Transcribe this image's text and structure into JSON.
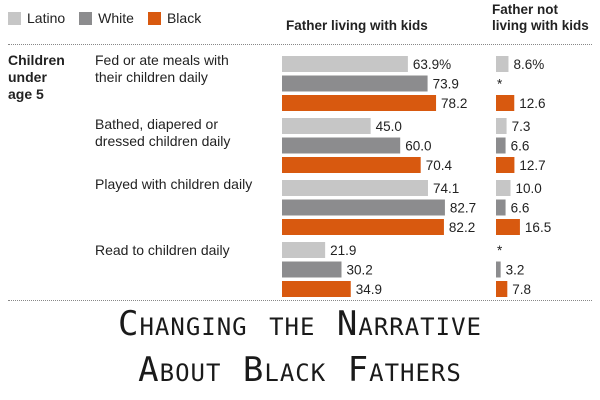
{
  "legend": [
    {
      "label": "Latino",
      "color": "#c6c6c6"
    },
    {
      "label": "White",
      "color": "#8c8c8e"
    },
    {
      "label": "Black",
      "color": "#d8590f"
    }
  ],
  "row_title_lines": [
    "Children",
    "under",
    "age 5"
  ],
  "footer": {
    "line1": "Changing the Narrative",
    "line2": "About Black Fathers"
  },
  "chart_data": {
    "type": "bar",
    "orientation": "horizontal",
    "panels": [
      {
        "title_lines": [
          "Father living with kids"
        ]
      },
      {
        "title_lines": [
          "Father not",
          "living with kids"
        ]
      }
    ],
    "categories": [
      {
        "label_lines": [
          "Fed or ate meals with",
          "their children daily"
        ]
      },
      {
        "label_lines": [
          "Bathed, diapered or",
          "dressed children daily"
        ]
      },
      {
        "label_lines": [
          "Played with children daily"
        ]
      },
      {
        "label_lines": [
          "Read to children daily"
        ]
      }
    ],
    "series": [
      {
        "name": "Latino",
        "color": "#c6c6c6",
        "living": [
          63.9,
          45.0,
          74.1,
          21.9
        ],
        "living_labels": [
          "63.9%",
          "45.0",
          "74.1",
          "21.9"
        ],
        "not_living": [
          8.6,
          7.3,
          10.0,
          null
        ],
        "not_living_labels": [
          "8.6%",
          "7.3",
          "10.0",
          "*"
        ]
      },
      {
        "name": "White",
        "color": "#8c8c8e",
        "living": [
          73.9,
          60.0,
          82.7,
          30.2
        ],
        "living_labels": [
          "73.9",
          "60.0",
          "82.7",
          "30.2"
        ],
        "not_living": [
          null,
          6.6,
          6.6,
          3.2
        ],
        "not_living_labels": [
          "*",
          "6.6",
          "6.6",
          "3.2"
        ]
      },
      {
        "name": "Black",
        "color": "#d8590f",
        "living": [
          78.2,
          70.4,
          82.2,
          34.9
        ],
        "living_labels": [
          "78.2",
          "70.4",
          "82.2",
          "34.9"
        ],
        "not_living": [
          12.6,
          12.7,
          16.5,
          7.8
        ],
        "not_living_labels": [
          "12.6",
          "12.7",
          "16.5",
          "7.8"
        ]
      }
    ],
    "value_unit": "%",
    "grid": false,
    "legend_position": "top-left"
  }
}
